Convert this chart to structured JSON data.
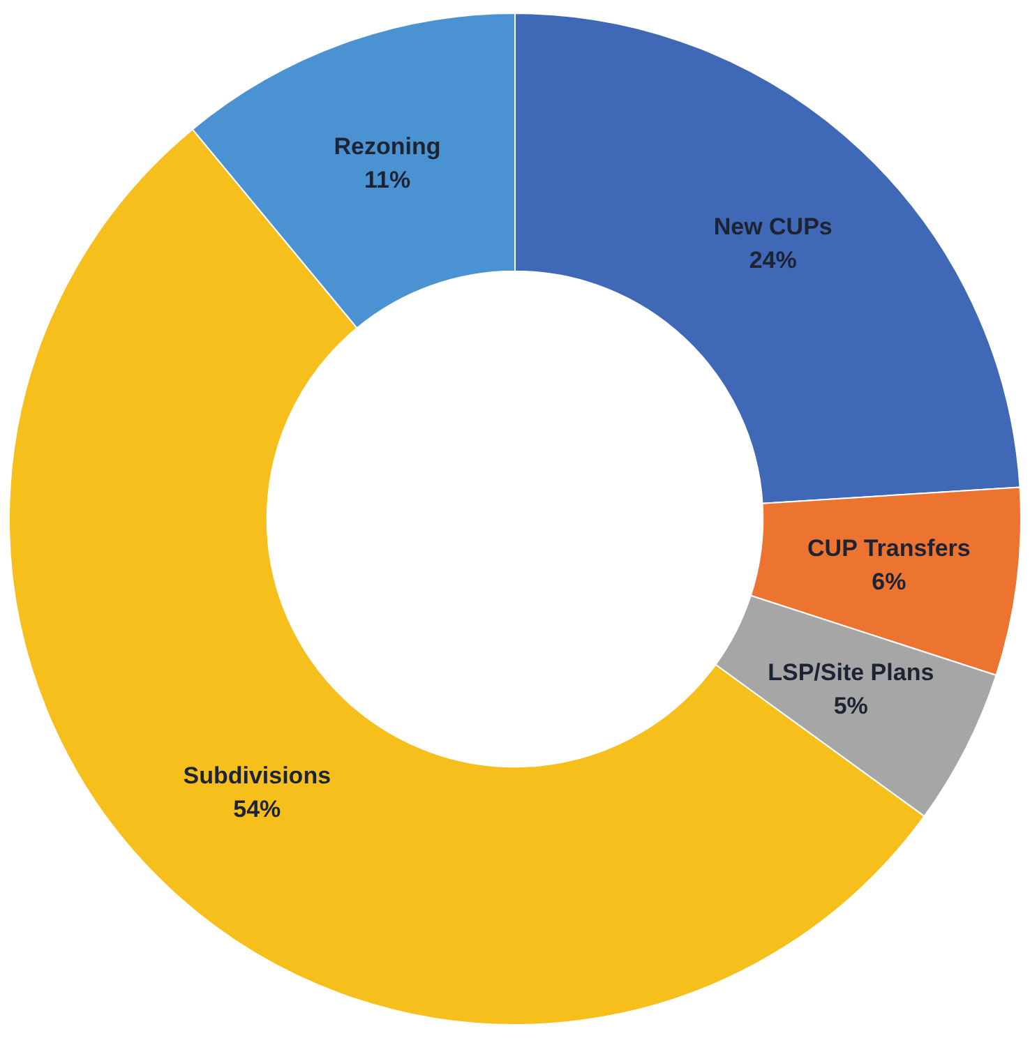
{
  "chart_data": {
    "type": "donut",
    "categories": [
      "New CUPs",
      "CUP Transfers",
      "LSP/Site Plans",
      "Subdivisions",
      "Rezoning"
    ],
    "values": [
      24,
      6,
      5,
      54,
      11
    ],
    "colors": [
      "#3f68b6",
      "#ed7430",
      "#a6a6a6",
      "#f7bf1c",
      "#4b92d2"
    ],
    "value_labels": [
      "24%",
      "6%",
      "5%",
      "54%",
      "11%"
    ],
    "legend": false
  }
}
